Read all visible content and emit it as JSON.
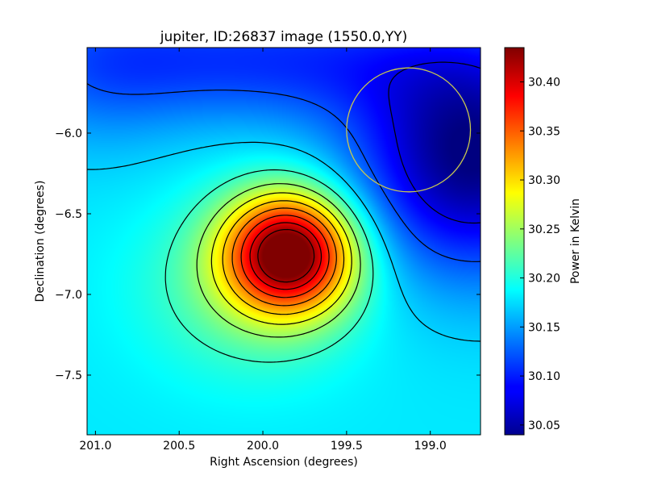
{
  "chart_data": {
    "type": "heatmap",
    "title": "jupiter, ID:26837 image (1550.0,YY)",
    "xlabel": "Right Ascension (degrees)",
    "ylabel": "Declination (degrees)",
    "colorbar_label": "Power in Kelvin",
    "colormap": "jet",
    "x_inverted": true,
    "xlim": [
      201.05,
      198.7
    ],
    "ylim": [
      -7.87,
      -5.47
    ],
    "x_ticks": [
      {
        "value": 201.0,
        "label": "201.0"
      },
      {
        "value": 200.5,
        "label": "200.5"
      },
      {
        "value": 200.0,
        "label": "200.0"
      },
      {
        "value": 199.5,
        "label": "199.5"
      },
      {
        "value": 199.0,
        "label": "199.0"
      }
    ],
    "y_ticks": [
      {
        "value": -6.0,
        "label": "−6.0"
      },
      {
        "value": -6.5,
        "label": "−6.5"
      },
      {
        "value": -7.0,
        "label": "−7.0"
      },
      {
        "value": -7.5,
        "label": "−7.5"
      }
    ],
    "color_range": [
      30.04,
      30.435
    ],
    "colorbar_ticks": [
      {
        "value": 30.05,
        "label": "30.05"
      },
      {
        "value": 30.1,
        "label": "30.10"
      },
      {
        "value": 30.15,
        "label": "30.15"
      },
      {
        "value": 30.2,
        "label": "30.20"
      },
      {
        "value": 30.25,
        "label": "30.25"
      },
      {
        "value": 30.3,
        "label": "30.30"
      },
      {
        "value": 30.35,
        "label": "30.35"
      },
      {
        "value": 30.4,
        "label": "30.40"
      }
    ],
    "field_model": {
      "background": 30.18,
      "components": [
        {
          "kind": "peak",
          "ra": 199.84,
          "dec": -6.74,
          "amplitude": 0.255,
          "sigma_ra": 0.27,
          "sigma_dec": 0.26
        },
        {
          "kind": "peak",
          "ra": 200.06,
          "dec": -6.95,
          "amplitude": 0.05,
          "sigma_ra": 0.45,
          "sigma_dec": 0.38
        },
        {
          "kind": "depression",
          "ra": 198.75,
          "dec": -6.15,
          "amplitude": -0.14,
          "sigma_ra": 0.5,
          "sigma_dec": 0.5
        },
        {
          "kind": "depression",
          "ra": 200.0,
          "dec": -5.55,
          "amplitude": -0.07,
          "sigma_ra": 0.9,
          "sigma_dec": 0.28
        },
        {
          "kind": "depression",
          "ra": 201.0,
          "dec": -5.6,
          "amplitude": -0.03,
          "sigma_ra": 0.4,
          "sigma_dec": 0.4
        }
      ]
    },
    "contour_levels": [
      30.08,
      30.12,
      30.17,
      30.21,
      30.245,
      30.275,
      30.305,
      30.335,
      30.365,
      30.395,
      30.42
    ],
    "beam_circle": {
      "ra": 199.13,
      "dec": -5.98,
      "radius_deg": 0.37,
      "color": "#c8c850"
    }
  }
}
